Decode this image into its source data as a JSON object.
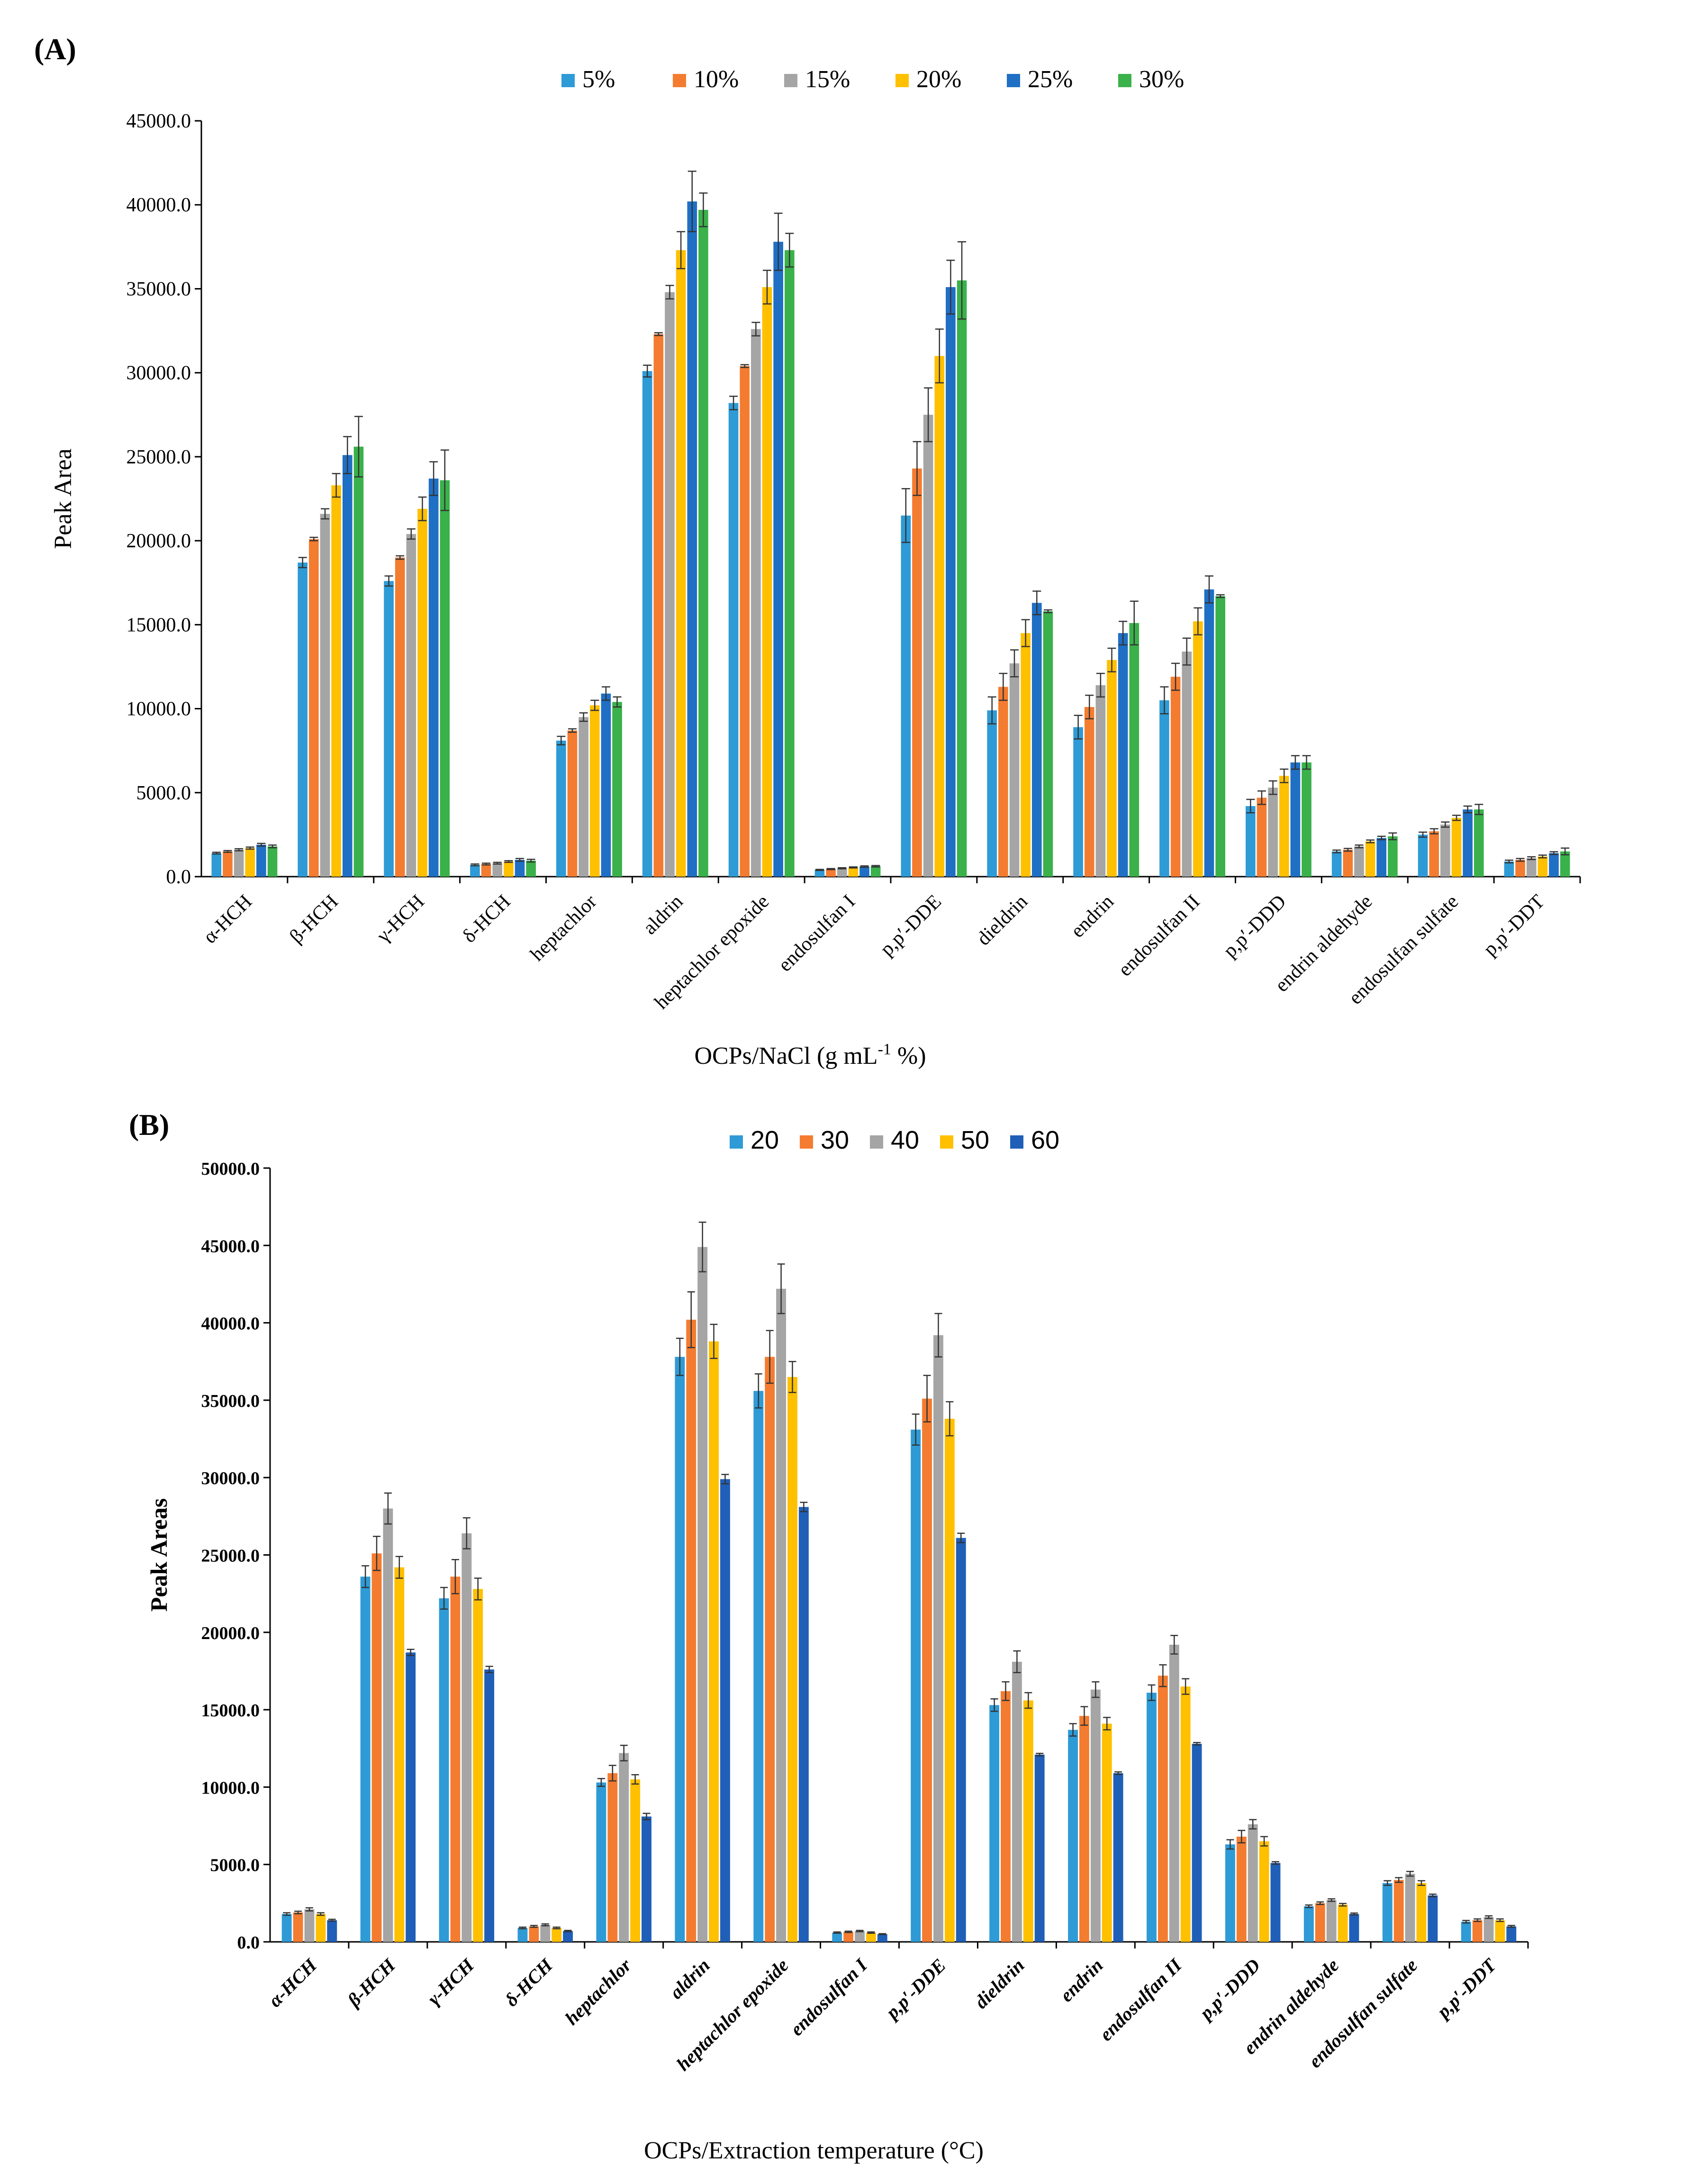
{
  "chart_data": [
    {
      "type": "bar",
      "panel_label": "(A)",
      "title": "",
      "xlabel": "OCPs/NaCl (g mL",
      "xlabel_sup": "-1",
      "xlabel_suffix": " %)",
      "ylabel": "Peak Area",
      "ylim": [
        0,
        45000
      ],
      "yticks": [
        "0.0",
        "5000.0",
        "10000.0",
        "15000.0",
        "20000.0",
        "25000.0",
        "30000.0",
        "35000.0",
        "40000.0",
        "45000.0"
      ],
      "legend_position": "top",
      "grid": false,
      "error_bars": true,
      "categories": [
        "α-HCH",
        "β-HCH",
        "γ-HCH",
        "δ-HCH",
        "heptachlor",
        "aldrin",
        "heptachlor epoxide",
        "endosulfan I",
        "p,p′-DDE",
        "dieldrin",
        "endrin",
        "endosulfan II",
        "p,p′-DDD",
        "endrin aldehyde",
        "endosulfan sulfate",
        "p,p′-DDT"
      ],
      "series": [
        {
          "name": "5%",
          "color": "#2E9BD6",
          "values": [
            1400,
            18700,
            17600,
            700,
            8100,
            30100,
            28200,
            400,
            21500,
            9900,
            8900,
            10500,
            4200,
            1500,
            2500,
            900
          ],
          "errors": [
            50,
            300,
            300,
            50,
            250,
            350,
            400,
            30,
            1600,
            800,
            700,
            800,
            400,
            80,
            150,
            80
          ]
        },
        {
          "name": "10%",
          "color": "#F47C30",
          "values": [
            1500,
            20100,
            19000,
            750,
            8700,
            32300,
            30400,
            450,
            24300,
            11300,
            10100,
            11900,
            4700,
            1600,
            2700,
            1000
          ],
          "errors": [
            50,
            100,
            100,
            50,
            100,
            80,
            80,
            30,
            1600,
            800,
            700,
            800,
            400,
            80,
            150,
            80
          ]
        },
        {
          "name": "15%",
          "color": "#A5A5A5",
          "values": [
            1600,
            21600,
            20400,
            800,
            9500,
            34800,
            32600,
            500,
            27500,
            12700,
            11400,
            13400,
            5300,
            1800,
            3100,
            1100
          ],
          "errors": [
            60,
            300,
            300,
            50,
            250,
            400,
            400,
            30,
            1600,
            800,
            700,
            800,
            400,
            80,
            150,
            80
          ]
        },
        {
          "name": "20%",
          "color": "#FFC000",
          "values": [
            1700,
            23300,
            21900,
            900,
            10200,
            37300,
            35100,
            550,
            31000,
            14500,
            12900,
            15200,
            6000,
            2100,
            3500,
            1200
          ],
          "errors": [
            60,
            700,
            700,
            50,
            300,
            1100,
            1000,
            30,
            1600,
            800,
            700,
            800,
            400,
            80,
            150,
            80
          ]
        },
        {
          "name": "25%",
          "color": "#1F6FC5",
          "values": [
            1900,
            25100,
            23700,
            1000,
            10900,
            40200,
            37800,
            600,
            35100,
            16300,
            14500,
            17100,
            6800,
            2300,
            4000,
            1400
          ],
          "errors": [
            80,
            1100,
            1000,
            80,
            400,
            1800,
            1700,
            40,
            1600,
            700,
            700,
            800,
            400,
            100,
            200,
            80
          ]
        },
        {
          "name": "30%",
          "color": "#3AB14A",
          "values": [
            1800,
            25600,
            23600,
            950,
            10400,
            39700,
            37300,
            620,
            35500,
            15800,
            15100,
            16700,
            6800,
            2400,
            4000,
            1500
          ],
          "errors": [
            80,
            1800,
            1800,
            80,
            300,
            1000,
            1000,
            40,
            2300,
            80,
            1300,
            80,
            400,
            200,
            300,
            200
          ]
        }
      ]
    },
    {
      "type": "bar",
      "panel_label": "(B)",
      "title": "",
      "xlabel": "OCPs/Extraction temperature (",
      "xlabel_unit": "°C)",
      "ylabel": "Peak Areas",
      "ylim": [
        0,
        50000
      ],
      "yticks": [
        "0.0",
        "5000.0",
        "10000.0",
        "15000.0",
        "20000.0",
        "25000.0",
        "30000.0",
        "35000.0",
        "40000.0",
        "45000.0",
        "50000.0"
      ],
      "legend_position": "top",
      "grid": false,
      "error_bars": true,
      "categories": [
        "α-HCH",
        "β-HCH",
        "γ-HCH",
        "δ-HCH",
        "heptachlor",
        "aldrin",
        "heptachlor epoxide",
        "endosulfan I",
        "p,p′-DDE",
        "dieldrin",
        "endrin",
        "endosulfan II",
        "p,p′-DDD",
        "endrin aldehyde",
        "endosulfan sulfate",
        "p,p′-DDT"
      ],
      "series": [
        {
          "name": "20",
          "color": "#2E9BD6",
          "values": [
            1800,
            23600,
            22200,
            900,
            10300,
            37800,
            35600,
            600,
            33100,
            15300,
            13700,
            16100,
            6300,
            2300,
            3800,
            1300
          ],
          "errors": [
            80,
            700,
            700,
            50,
            250,
            1200,
            1100,
            40,
            1000,
            400,
            400,
            500,
            300,
            80,
            150,
            80
          ]
        },
        {
          "name": "30",
          "color": "#F47C30",
          "values": [
            1900,
            25100,
            23600,
            1000,
            10900,
            40200,
            37800,
            650,
            35100,
            16200,
            14600,
            17200,
            6800,
            2500,
            4000,
            1400
          ],
          "errors": [
            80,
            1100,
            1100,
            60,
            500,
            1800,
            1700,
            40,
            1500,
            600,
            600,
            700,
            400,
            80,
            150,
            80
          ]
        },
        {
          "name": "40",
          "color": "#A5A5A5",
          "values": [
            2100,
            28000,
            26400,
            1100,
            12200,
            44900,
            42200,
            700,
            39200,
            18100,
            16300,
            19200,
            7600,
            2700,
            4400,
            1600
          ],
          "errors": [
            100,
            1000,
            1000,
            60,
            500,
            1600,
            1600,
            40,
            1400,
            700,
            500,
            600,
            300,
            80,
            150,
            80
          ]
        },
        {
          "name": "50",
          "color": "#FFC000",
          "values": [
            1800,
            24200,
            22800,
            900,
            10500,
            38800,
            36500,
            600,
            33800,
            15600,
            14100,
            16500,
            6500,
            2400,
            3800,
            1400
          ],
          "errors": [
            80,
            700,
            700,
            50,
            300,
            1100,
            1000,
            40,
            1100,
            500,
            400,
            500,
            300,
            80,
            150,
            80
          ]
        },
        {
          "name": "60",
          "color": "#1F5FB8",
          "values": [
            1400,
            18700,
            17600,
            700,
            8100,
            29900,
            28100,
            500,
            26100,
            12100,
            10900,
            12800,
            5100,
            1800,
            3000,
            1000
          ],
          "errors": [
            60,
            200,
            200,
            40,
            200,
            300,
            300,
            30,
            300,
            80,
            80,
            80,
            80,
            60,
            80,
            60
          ]
        }
      ]
    }
  ]
}
